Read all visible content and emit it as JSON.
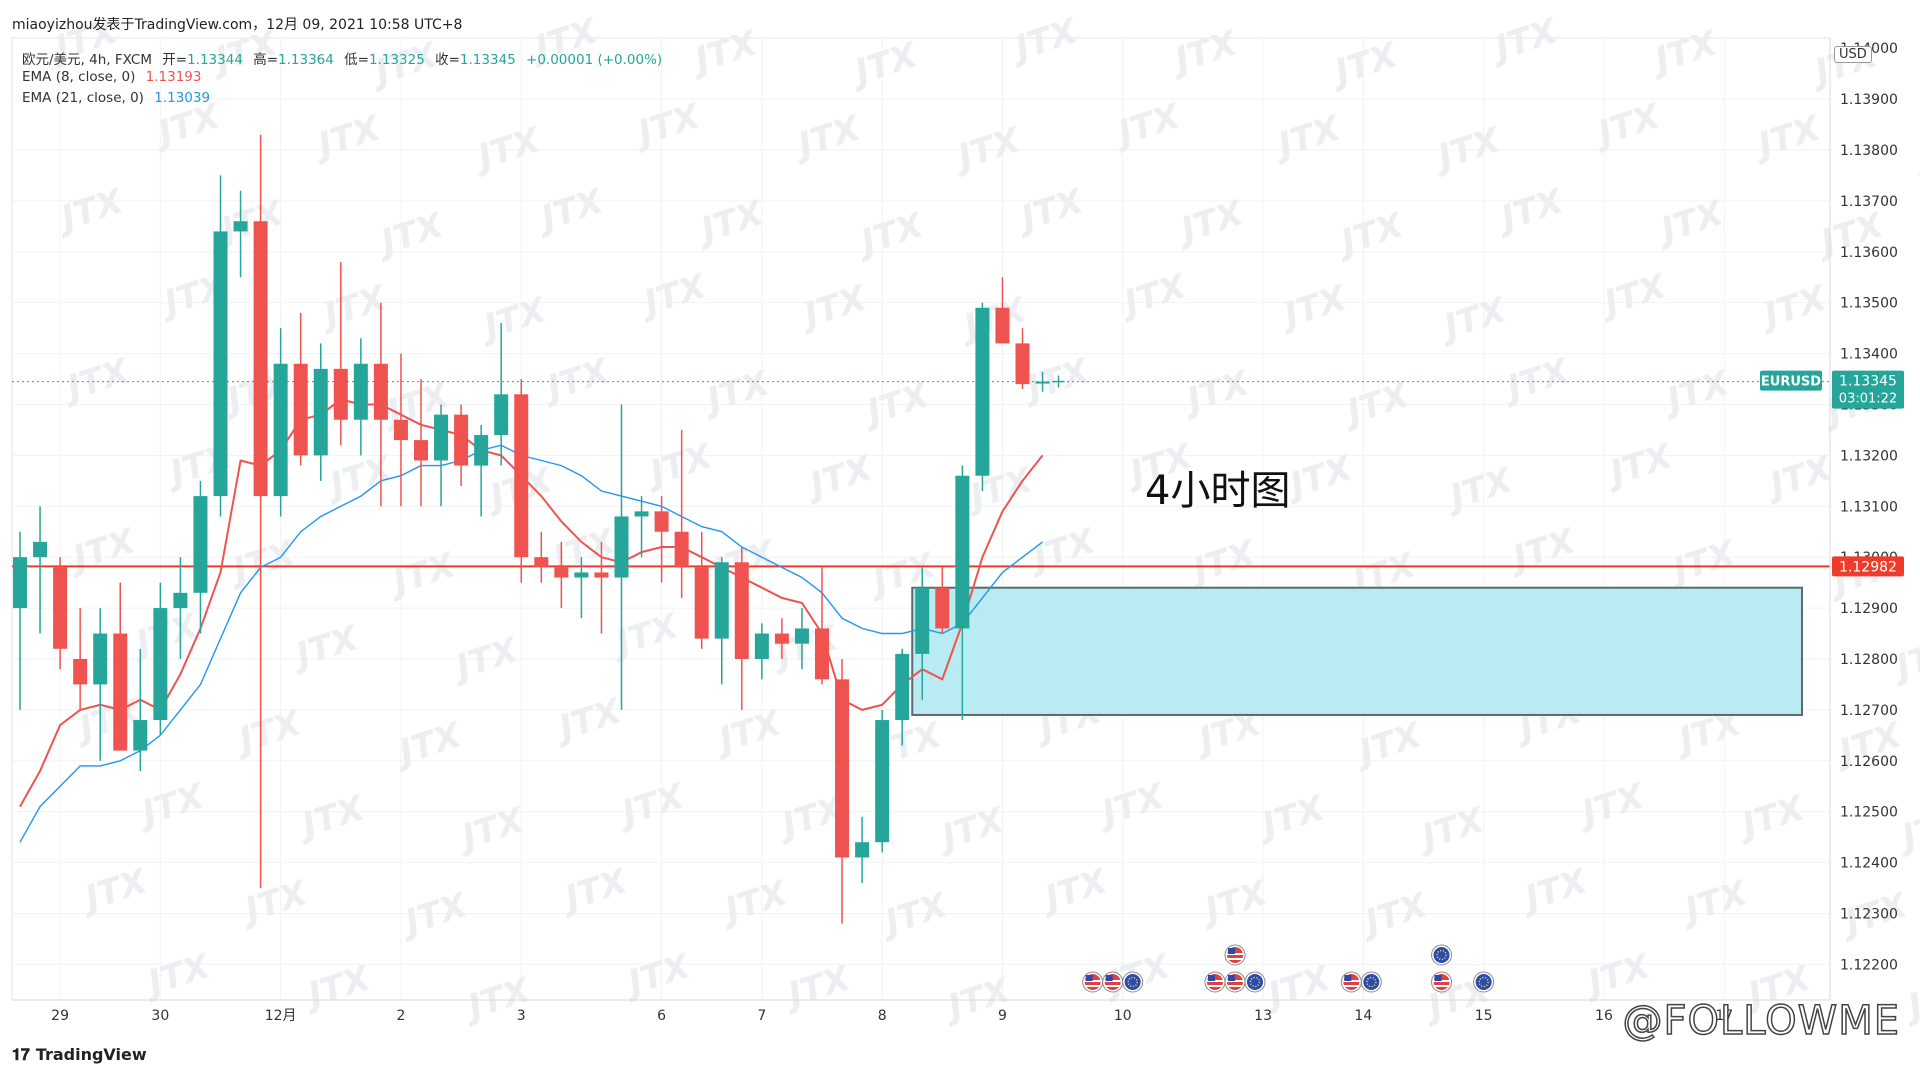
{
  "header": {
    "publish_line": "miaoyizhou发表于TradingView.com，12月 09, 2021 10:58 UTC+8"
  },
  "legend": {
    "symbol_line": "欧元/美元, 4h, FXCM",
    "open_label": "开=",
    "open": "1.13344",
    "high_label": "高=",
    "high": "1.13364",
    "low_label": "低=",
    "low": "1.13325",
    "close_label": "收=",
    "close": "1.13345",
    "change": "+0.00001 (+0.00%)",
    "ema8_label": "EMA (8, close, 0)",
    "ema8_value": "1.13193",
    "ema21_label": "EMA (21, close, 0)",
    "ema21_value": "1.13039"
  },
  "currency_label": "USD",
  "annotation": "4小时图",
  "branding": {
    "tradingview": "TradingView",
    "followme": "@FOLLOWME",
    "watermark": "JTX"
  },
  "colors": {
    "up": "#26a69a",
    "down": "#ef5350",
    "ema8": "#ef5350",
    "ema21": "#2196f3",
    "zone_fill": "#b8ecf2",
    "level": "#ef3b2c"
  },
  "chart_data": {
    "type": "candlestick",
    "symbol": "EURUSD",
    "timeframe": "4h",
    "price_tag": {
      "label": "EURUSD",
      "value": "1.13345",
      "countdown": "03:01:22"
    },
    "level_line": {
      "value": 1.12982,
      "label": "1.12982"
    },
    "demand_zone": {
      "from": 1.1269,
      "to": 1.1294,
      "start_candle": 45
    },
    "ylim": [
      1.1213,
      1.1402
    ],
    "y_ticks": [
      "1.12200",
      "1.12300",
      "1.12400",
      "1.12500",
      "1.12600",
      "1.12700",
      "1.12800",
      "1.12900",
      "1.13000",
      "1.13100",
      "1.13200",
      "1.13300",
      "1.13400",
      "1.13500",
      "1.13600",
      "1.13700",
      "1.13800",
      "1.13900"
    ],
    "x_ticks": [
      {
        "label": "29",
        "candle": 2
      },
      {
        "label": "30",
        "candle": 7
      },
      {
        "label": "12月",
        "candle": 13
      },
      {
        "label": "2",
        "candle": 19
      },
      {
        "label": "3",
        "candle": 25
      },
      {
        "label": "6",
        "candle": 32
      },
      {
        "label": "7",
        "candle": 37
      },
      {
        "label": "8",
        "candle": 43
      },
      {
        "label": "9",
        "candle": 49
      },
      {
        "label": "10",
        "candle": 55
      },
      {
        "label": "13",
        "candle": 62
      },
      {
        "label": "14",
        "candle": 67
      },
      {
        "label": "15",
        "candle": 73
      },
      {
        "label": "16",
        "candle": 79
      },
      {
        "label": "17",
        "candle": 85
      }
    ],
    "candles": [
      [
        1.129,
        1.1305,
        1.127,
        1.13
      ],
      [
        1.13,
        1.131,
        1.1285,
        1.1303
      ],
      [
        1.1298,
        1.13,
        1.1278,
        1.1282
      ],
      [
        1.128,
        1.129,
        1.127,
        1.1275
      ],
      [
        1.1275,
        1.129,
        1.126,
        1.1285
      ],
      [
        1.1285,
        1.1295,
        1.1262,
        1.1262
      ],
      [
        1.1262,
        1.1282,
        1.1258,
        1.1268
      ],
      [
        1.1268,
        1.1295,
        1.1265,
        1.129
      ],
      [
        1.129,
        1.13,
        1.128,
        1.1293
      ],
      [
        1.1293,
        1.1315,
        1.1285,
        1.1312
      ],
      [
        1.1312,
        1.1375,
        1.1308,
        1.1364
      ],
      [
        1.1364,
        1.1372,
        1.1355,
        1.1366
      ],
      [
        1.1366,
        1.1383,
        1.1235,
        1.1312
      ],
      [
        1.1312,
        1.1345,
        1.1308,
        1.1338
      ],
      [
        1.1338,
        1.1348,
        1.1318,
        1.132
      ],
      [
        1.132,
        1.1342,
        1.1315,
        1.1337
      ],
      [
        1.1337,
        1.1358,
        1.1322,
        1.1327
      ],
      [
        1.1327,
        1.1343,
        1.132,
        1.1338
      ],
      [
        1.1338,
        1.135,
        1.131,
        1.1327
      ],
      [
        1.1327,
        1.134,
        1.131,
        1.1323
      ],
      [
        1.1323,
        1.1335,
        1.131,
        1.1319
      ],
      [
        1.1319,
        1.133,
        1.131,
        1.1328
      ],
      [
        1.1328,
        1.133,
        1.1314,
        1.1318
      ],
      [
        1.1318,
        1.1326,
        1.1308,
        1.1324
      ],
      [
        1.1324,
        1.1346,
        1.1318,
        1.1332
      ],
      [
        1.1332,
        1.1335,
        1.1295,
        1.13
      ],
      [
        1.13,
        1.1305,
        1.1295,
        1.1298
      ],
      [
        1.1298,
        1.1303,
        1.129,
        1.1296
      ],
      [
        1.1296,
        1.13,
        1.1288,
        1.1297
      ],
      [
        1.1297,
        1.1303,
        1.1285,
        1.1296
      ],
      [
        1.1296,
        1.133,
        1.127,
        1.1308
      ],
      [
        1.1308,
        1.1312,
        1.13,
        1.1309
      ],
      [
        1.1309,
        1.1312,
        1.1295,
        1.1305
      ],
      [
        1.1305,
        1.1325,
        1.1292,
        1.1298
      ],
      [
        1.1298,
        1.1305,
        1.1282,
        1.1284
      ],
      [
        1.1284,
        1.13,
        1.1275,
        1.1299
      ],
      [
        1.1299,
        1.1302,
        1.127,
        1.128
      ],
      [
        1.128,
        1.1287,
        1.1276,
        1.1285
      ],
      [
        1.1285,
        1.1288,
        1.128,
        1.1283
      ],
      [
        1.1283,
        1.129,
        1.1278,
        1.1286
      ],
      [
        1.1286,
        1.1298,
        1.1275,
        1.1276
      ],
      [
        1.1276,
        1.128,
        1.1228,
        1.1241
      ],
      [
        1.1241,
        1.1249,
        1.1236,
        1.1244
      ],
      [
        1.1244,
        1.127,
        1.1242,
        1.1268
      ],
      [
        1.1268,
        1.1282,
        1.1263,
        1.1281
      ],
      [
        1.1281,
        1.1298,
        1.1272,
        1.1294
      ],
      [
        1.1294,
        1.1298,
        1.1285,
        1.1286
      ],
      [
        1.1286,
        1.1318,
        1.1268,
        1.1316
      ],
      [
        1.1316,
        1.135,
        1.1313,
        1.1349
      ],
      [
        1.1349,
        1.1355,
        1.1342,
        1.1342
      ],
      [
        1.1342,
        1.1345,
        1.1333,
        1.1334
      ],
      [
        1.13344,
        1.13364,
        1.13325,
        1.13345
      ]
    ],
    "ema8": [
      1.1251,
      1.1258,
      1.1267,
      1.127,
      1.1271,
      1.127,
      1.1272,
      1.127,
      1.1277,
      1.1286,
      1.1297,
      1.1319,
      1.1318,
      1.1321,
      1.1327,
      1.1328,
      1.1331,
      1.133,
      1.133,
      1.1328,
      1.1326,
      1.1325,
      1.1324,
      1.1321,
      1.132,
      1.1316,
      1.1312,
      1.1307,
      1.1303,
      1.13,
      1.1299,
      1.1301,
      1.1302,
      1.1302,
      1.13,
      1.1298,
      1.1296,
      1.1294,
      1.1292,
      1.1291,
      1.1285,
      1.1272,
      1.127,
      1.1271,
      1.1275,
      1.1278,
      1.1276,
      1.1287,
      1.13,
      1.1309,
      1.1315,
      1.132
    ],
    "ema21": [
      1.1244,
      1.1251,
      1.1255,
      1.1259,
      1.1259,
      1.126,
      1.1262,
      1.1265,
      1.127,
      1.1275,
      1.1284,
      1.1293,
      1.1298,
      1.13,
      1.1305,
      1.1308,
      1.131,
      1.1312,
      1.1315,
      1.1316,
      1.1318,
      1.1318,
      1.1319,
      1.1321,
      1.1322,
      1.132,
      1.1319,
      1.1318,
      1.1316,
      1.1313,
      1.1312,
      1.1311,
      1.131,
      1.1308,
      1.1306,
      1.1305,
      1.1302,
      1.13,
      1.1298,
      1.1296,
      1.1293,
      1.1288,
      1.1286,
      1.1285,
      1.1285,
      1.1286,
      1.1285,
      1.1287,
      1.1292,
      1.1297,
      1.13,
      1.1303
    ],
    "event_markers": [
      {
        "candle": 53.5,
        "row": 0,
        "icons": [
          "US",
          "US",
          "EU"
        ]
      },
      {
        "candle": 59.6,
        "row": 0,
        "icons": [
          "US",
          "US",
          "EU"
        ]
      },
      {
        "candle": 60.6,
        "row": 1,
        "icons": [
          "US"
        ]
      },
      {
        "candle": 66.4,
        "row": 0,
        "icons": [
          "US",
          "EU"
        ]
      },
      {
        "candle": 70.9,
        "row": 0,
        "icons": [
          "US"
        ]
      },
      {
        "candle": 70.9,
        "row": 1,
        "icons": [
          "EU"
        ]
      },
      {
        "candle": 73.0,
        "row": 0,
        "icons": [
          "EU"
        ]
      }
    ]
  }
}
